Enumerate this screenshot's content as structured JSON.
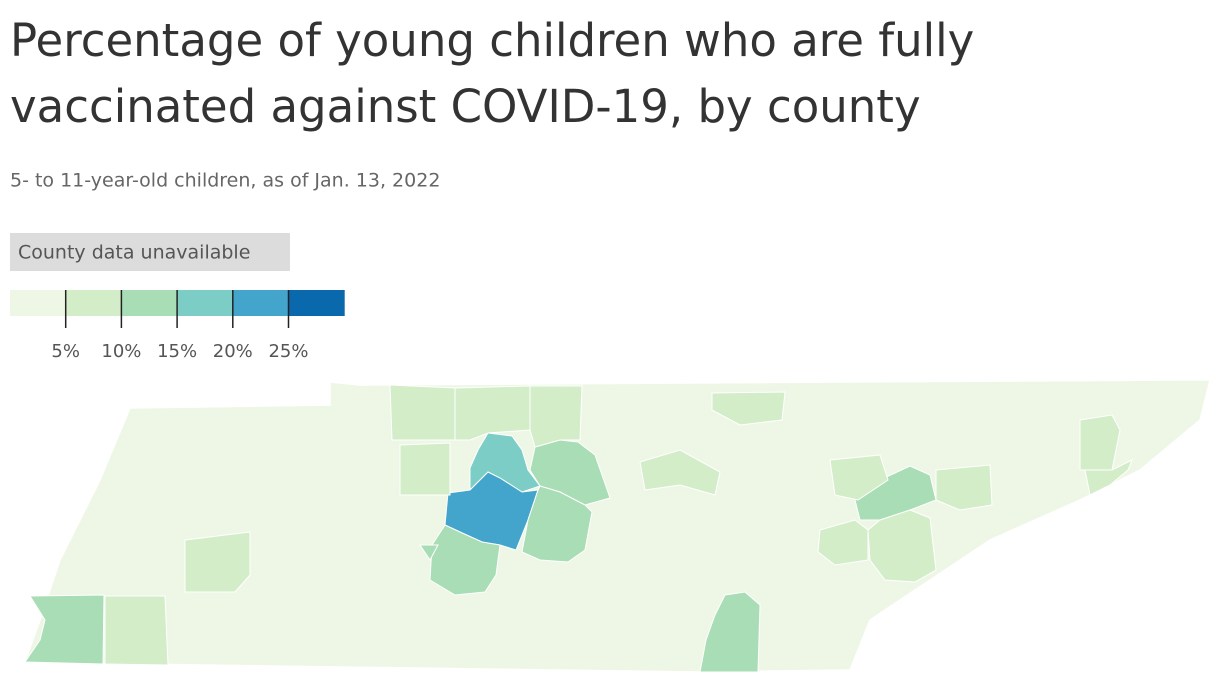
{
  "chart_data": {
    "type": "choropleth",
    "title": [
      "Percentage of young children who are fully",
      "vaccinated against COVID-19, by county"
    ],
    "subtitle": "5- to 11-year-old children, as of Jan. 13, 2022",
    "missing_label": "County data unavailable",
    "legend_colors": [
      "#eef7e6",
      "#d3edc9",
      "#a9ddb6",
      "#7bcdc5",
      "#44a5cc",
      "#0a68ac"
    ],
    "legend_ticks": [
      {
        "value": 5,
        "label": "5%"
      },
      {
        "value": 10,
        "label": "10%"
      },
      {
        "value": 15,
        "label": "15%"
      },
      {
        "value": 20,
        "label": "20%"
      },
      {
        "value": 25,
        "label": "25%"
      }
    ],
    "values": [
      17,
      22,
      12,
      12,
      11,
      11,
      8,
      11,
      7,
      7,
      11,
      11,
      7,
      7,
      7,
      7,
      7,
      7,
      7,
      7,
      7,
      7,
      7
    ]
  }
}
